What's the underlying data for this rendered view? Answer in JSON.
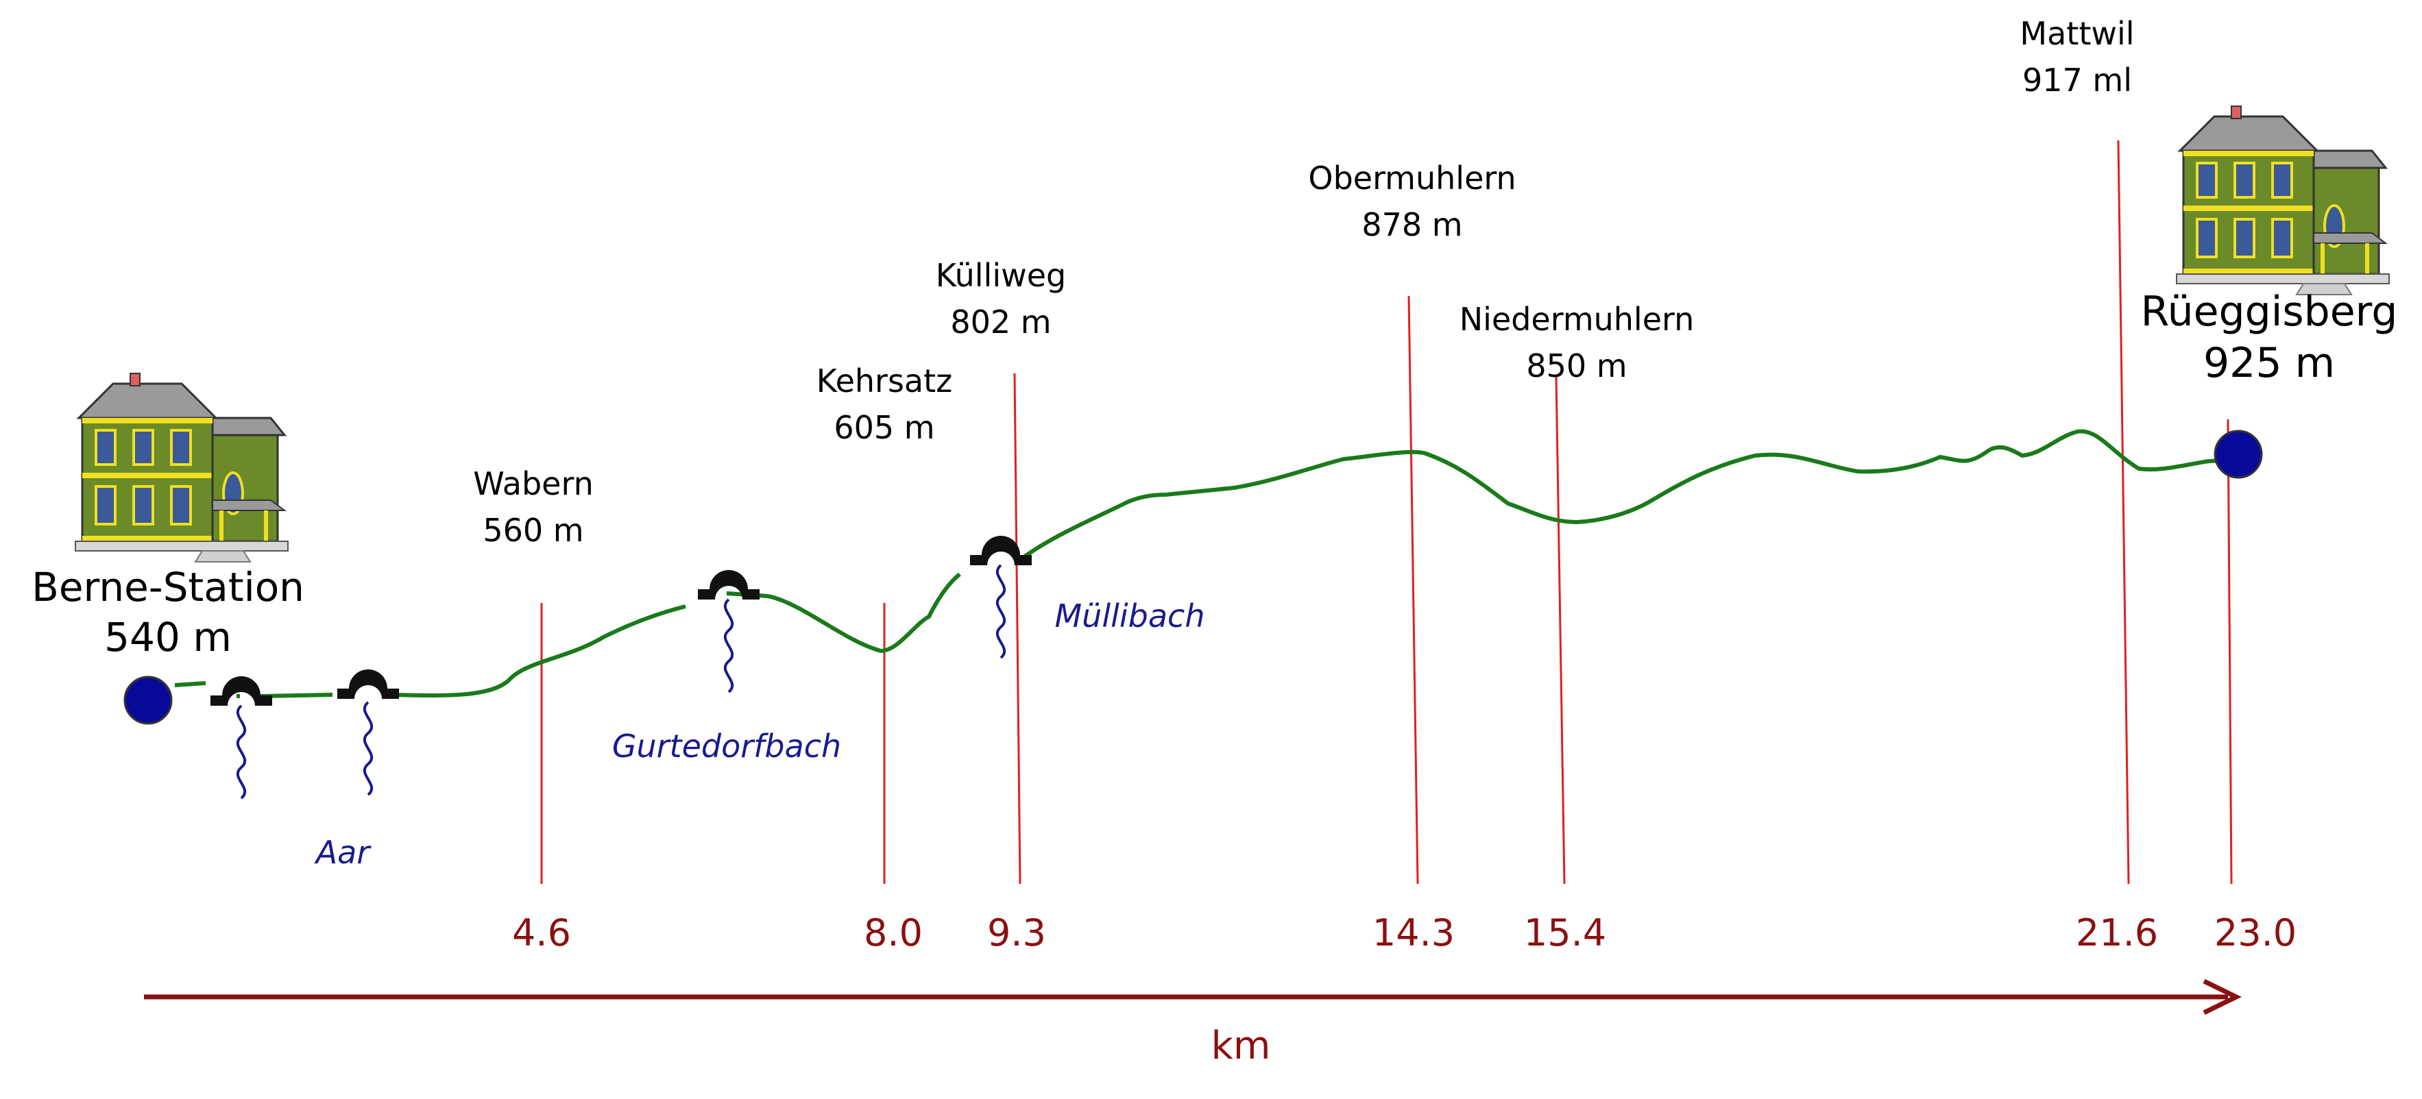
{
  "endpoints": {
    "start": {
      "name": "Berne-Station",
      "altitude": "540 m"
    },
    "end": {
      "name": "Rüeggisberg",
      "altitude": "925 m"
    }
  },
  "waypoints": [
    {
      "name": "Wabern",
      "altitude": "560 m",
      "km": "4.6"
    },
    {
      "name": "Kehrsatz",
      "altitude": "605 m",
      "km": "8.0"
    },
    {
      "name": "Külliweg",
      "altitude": "802 m",
      "km": "9.3"
    },
    {
      "name": "Obermuhlern",
      "altitude": "878 m",
      "km": "14.3"
    },
    {
      "name": "Niedermuhlern",
      "altitude": "850 m",
      "km": "15.4"
    },
    {
      "name": "Mattwil",
      "altitude": "917 ml",
      "km": "21.6"
    },
    {
      "name": "Rüeggisberg",
      "altitude": "925 m",
      "km": "23.0"
    }
  ],
  "rivers": [
    "Aar",
    "Gurtedorfbach",
    "Müllibach"
  ],
  "axis": {
    "label": "km"
  },
  "colors": {
    "profile": "#1a7a1a",
    "marker": "#e02020",
    "axis": "#8b1010",
    "river": "#1a1a8c",
    "endpoint": "#0a0a9a"
  },
  "icons": {
    "house": "house-icon",
    "bridge": "bridge-icon",
    "river": "river-icon"
  }
}
